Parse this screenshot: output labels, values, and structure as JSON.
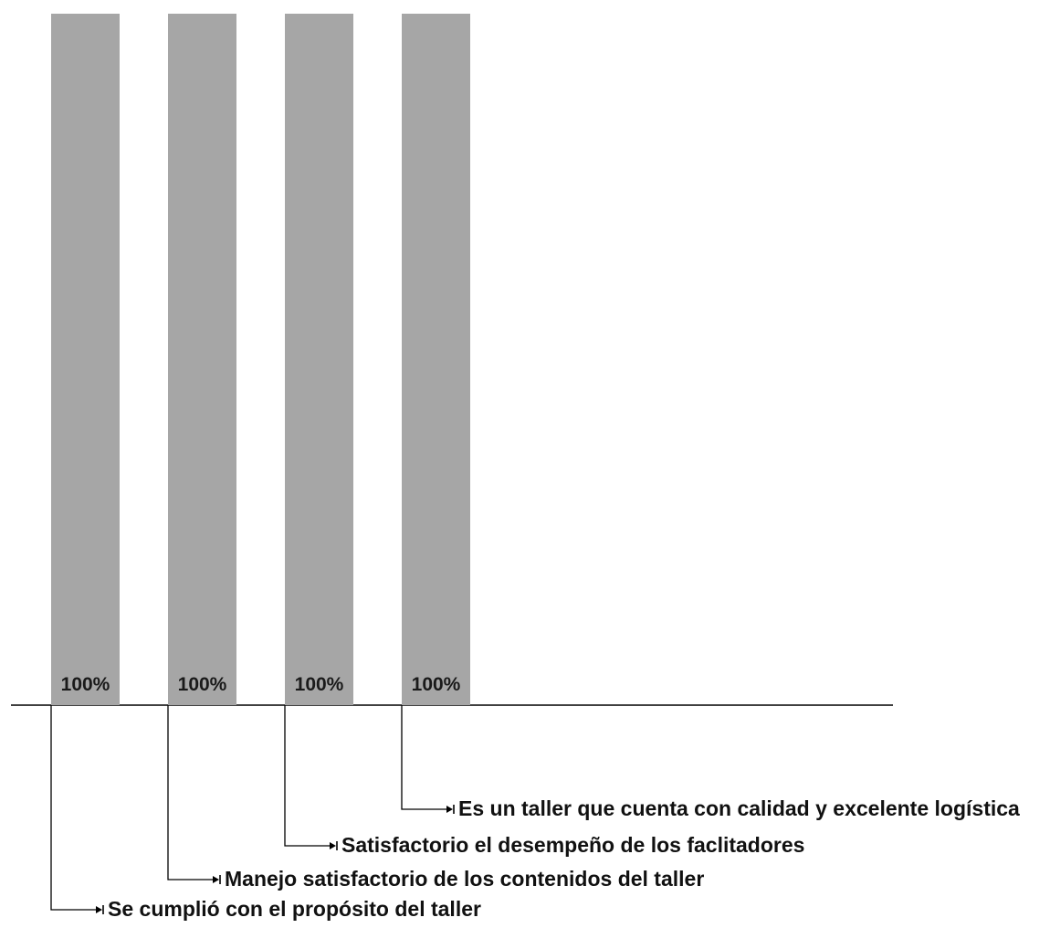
{
  "chart_data": {
    "type": "bar",
    "categories": [
      "Se cumplió con el propósito del taller",
      "Manejo satisfactorio de los contenidos del taller",
      "Satisfactorio el desempeño de los faclitadores",
      "Es un taller que cuenta con calidad y excelente logística"
    ],
    "values": [
      100,
      100,
      100,
      100
    ],
    "value_labels": [
      "100%",
      "100%",
      "100%",
      "100%"
    ],
    "ylim": [
      0,
      100
    ],
    "title": "",
    "xlabel": "",
    "ylabel": "",
    "grid": false,
    "legend": "none",
    "bar_color": "#a6a6a6",
    "label_color": "#1a1a1a"
  }
}
